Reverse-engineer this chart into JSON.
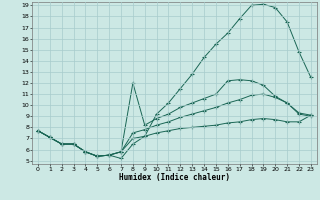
{
  "xlabel": "Humidex (Indice chaleur)",
  "bg_color": "#cce8e4",
  "grid_color": "#a8cccc",
  "line_color": "#1a6655",
  "xlim": [
    0,
    23
  ],
  "ylim": [
    5,
    19
  ],
  "xticks": [
    0,
    1,
    2,
    3,
    4,
    5,
    6,
    7,
    8,
    9,
    10,
    11,
    12,
    13,
    14,
    15,
    16,
    17,
    18,
    19,
    20,
    21,
    22,
    23
  ],
  "yticks": [
    5,
    6,
    7,
    8,
    9,
    10,
    11,
    12,
    13,
    14,
    15,
    16,
    17,
    18,
    19
  ],
  "line1_x": [
    0,
    1,
    2,
    3,
    4,
    5,
    6,
    7,
    8,
    9,
    10,
    11,
    12,
    13,
    14,
    15,
    16,
    17,
    18,
    19,
    20,
    21,
    22,
    23
  ],
  "line1_y": [
    7.7,
    7.1,
    6.5,
    6.5,
    5.8,
    5.4,
    5.5,
    5.2,
    6.5,
    7.2,
    9.2,
    10.2,
    11.5,
    12.8,
    14.3,
    15.5,
    16.5,
    17.8,
    19.0,
    19.1,
    18.8,
    17.5,
    14.8,
    12.5
  ],
  "line2_x": [
    0,
    1,
    2,
    3,
    4,
    5,
    6,
    7,
    8,
    9,
    10,
    11,
    12,
    13,
    14,
    15,
    16,
    17,
    18,
    19,
    20,
    21,
    22,
    23
  ],
  "line2_y": [
    7.7,
    7.1,
    6.5,
    6.5,
    5.8,
    5.4,
    5.5,
    5.8,
    12.0,
    8.2,
    8.8,
    9.2,
    9.8,
    10.2,
    10.6,
    11.0,
    12.2,
    12.3,
    12.2,
    11.8,
    10.8,
    10.2,
    9.2,
    9.0
  ],
  "line3_x": [
    0,
    1,
    2,
    3,
    4,
    5,
    6,
    7,
    8,
    9,
    10,
    11,
    12,
    13,
    14,
    15,
    16,
    17,
    18,
    19,
    20,
    21,
    22,
    23
  ],
  "line3_y": [
    7.7,
    7.1,
    6.5,
    6.5,
    5.8,
    5.4,
    5.5,
    5.8,
    7.5,
    7.8,
    8.2,
    8.5,
    8.9,
    9.2,
    9.5,
    9.8,
    10.2,
    10.5,
    10.9,
    11.0,
    10.7,
    10.2,
    9.3,
    9.1
  ],
  "line4_x": [
    0,
    1,
    2,
    3,
    4,
    5,
    6,
    7,
    8,
    9,
    10,
    11,
    12,
    13,
    14,
    15,
    16,
    17,
    18,
    19,
    20,
    21,
    22,
    23
  ],
  "line4_y": [
    7.7,
    7.1,
    6.5,
    6.5,
    5.8,
    5.4,
    5.5,
    5.8,
    7.0,
    7.2,
    7.5,
    7.7,
    7.9,
    8.0,
    8.1,
    8.2,
    8.4,
    8.5,
    8.7,
    8.8,
    8.7,
    8.5,
    8.5,
    9.1
  ]
}
